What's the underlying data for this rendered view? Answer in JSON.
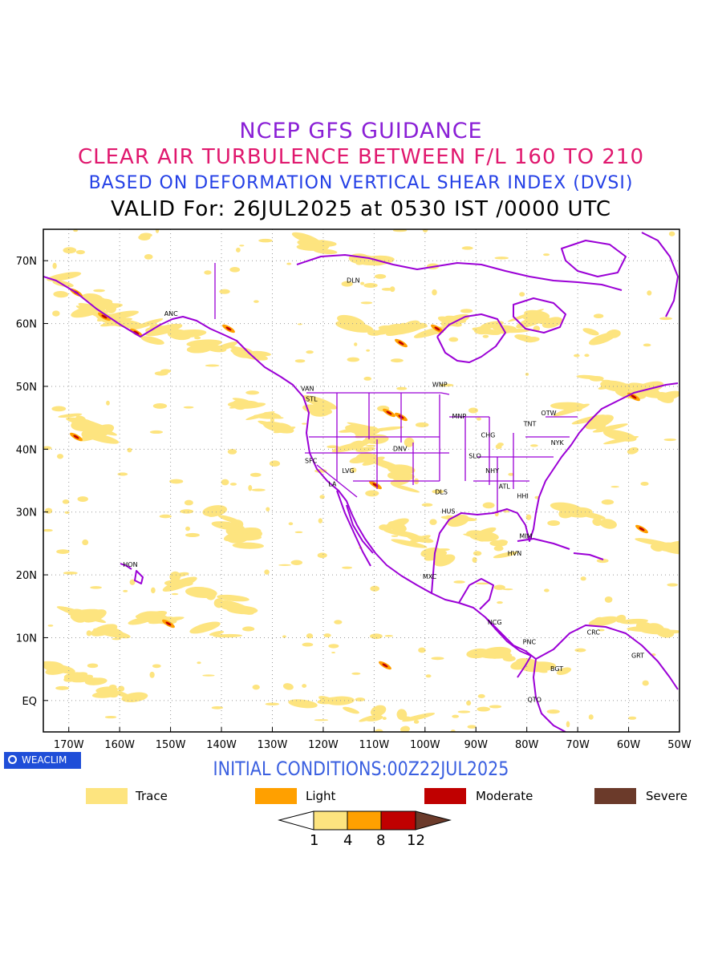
{
  "title": {
    "line1": "NCEP GFS GUIDANCE",
    "line2": "CLEAR AIR TURBULENCE BETWEEN F/L 160 TO 210",
    "line3": "BASED ON DEFORMATION VERTICAL SHEAR INDEX (DVSI)",
    "line4": "VALID For: 26JUL2025 at 0530 IST /0000 UTC"
  },
  "axes": {
    "lat_labels": [
      "70N",
      "60N",
      "50N",
      "40N",
      "30N",
      "20N",
      "10N",
      "EQ"
    ],
    "lon_labels": [
      "170W",
      "160W",
      "150W",
      "140W",
      "130W",
      "120W",
      "110W",
      "100W",
      "90W",
      "80W",
      "70W",
      "60W",
      "50W"
    ],
    "lon_range": [
      -175,
      -50
    ],
    "lat_range": [
      -5,
      75
    ],
    "grid": true
  },
  "cities": [
    {
      "code": "ANC",
      "lon": -149.9,
      "lat": 61.2
    },
    {
      "code": "DLN",
      "lon": -114.1,
      "lat": 66.5
    },
    {
      "code": "VAN",
      "lon": -123.1,
      "lat": 49.3
    },
    {
      "code": "STL",
      "lon": -122.3,
      "lat": 47.6
    },
    {
      "code": "WNP",
      "lon": -97.1,
      "lat": 49.9
    },
    {
      "code": "MNP",
      "lon": -93.3,
      "lat": 44.9
    },
    {
      "code": "TNT",
      "lon": -79.4,
      "lat": 43.7
    },
    {
      "code": "OTW",
      "lon": -75.7,
      "lat": 45.4
    },
    {
      "code": "CHG",
      "lon": -87.6,
      "lat": 41.9
    },
    {
      "code": "NYK",
      "lon": -74.0,
      "lat": 40.7
    },
    {
      "code": "SFC",
      "lon": -122.4,
      "lat": 37.8
    },
    {
      "code": "DNV",
      "lon": -104.9,
      "lat": 39.7
    },
    {
      "code": "SLO",
      "lon": -90.2,
      "lat": 38.6
    },
    {
      "code": "LVG",
      "lon": -115.1,
      "lat": 36.2
    },
    {
      "code": "NHY",
      "lon": -86.8,
      "lat": 36.2
    },
    {
      "code": "LA",
      "lon": -118.2,
      "lat": 34.1
    },
    {
      "code": "DLS",
      "lon": -96.8,
      "lat": 32.8
    },
    {
      "code": "ATL",
      "lon": -84.4,
      "lat": 33.7
    },
    {
      "code": "HHI",
      "lon": -80.8,
      "lat": 32.2
    },
    {
      "code": "HUS",
      "lon": -95.4,
      "lat": 29.8
    },
    {
      "code": "MIM",
      "lon": -80.2,
      "lat": 25.8
    },
    {
      "code": "HVN",
      "lon": -82.4,
      "lat": 23.1
    },
    {
      "code": "HON",
      "lon": -157.9,
      "lat": 21.3
    },
    {
      "code": "MXC",
      "lon": -99.1,
      "lat": 19.4
    },
    {
      "code": "NCG",
      "lon": -86.3,
      "lat": 12.1
    },
    {
      "code": "PNC",
      "lon": -79.5,
      "lat": 8.98
    },
    {
      "code": "CRC",
      "lon": -66.9,
      "lat": 10.5
    },
    {
      "code": "GRT",
      "lon": -58.2,
      "lat": 6.8
    },
    {
      "code": "BGT",
      "lon": -74.1,
      "lat": 4.7
    },
    {
      "code": "QTO",
      "lon": -78.5,
      "lat": -0.2
    }
  ],
  "logo_text": "WEACLIM",
  "initial_conditions": "INITIAL CONDITIONS:00Z22JUL2025",
  "legend": [
    {
      "label": "Trace",
      "color": "#fde47f"
    },
    {
      "label": "Light",
      "color": "#ffa000"
    },
    {
      "label": "Moderate",
      "color": "#c00000"
    },
    {
      "label": "Severe",
      "color": "#6b3a2a"
    }
  ],
  "colorbar": {
    "labels": [
      "1",
      "4",
      "8",
      "12"
    ],
    "colors": [
      "#ffffff",
      "#fde47f",
      "#ffa000",
      "#c00000",
      "#6b3a2a"
    ]
  },
  "colors": {
    "coastline": "#9b00d6",
    "trace": "#fde47f",
    "light": "#ffa000",
    "moderate": "#c00000"
  }
}
